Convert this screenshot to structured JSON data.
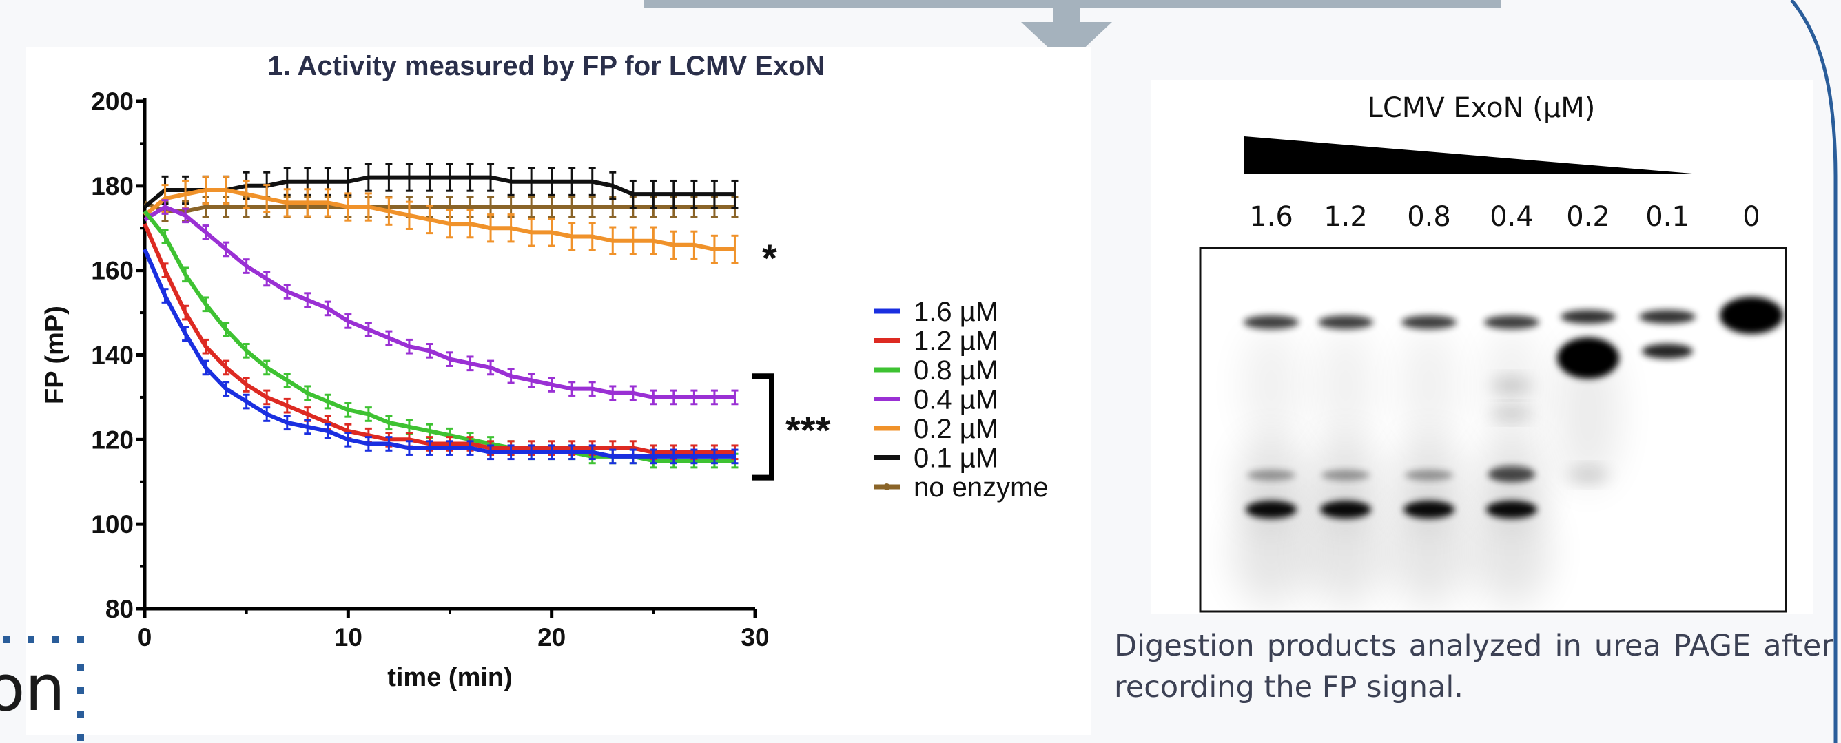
{
  "chart_data": {
    "type": "line",
    "title": "1. Activity measured by FP for LCMV ExoN",
    "xlabel": "time (min)",
    "ylabel": "FP (mP)",
    "xlim": [
      0,
      30
    ],
    "ylim": [
      80,
      200
    ],
    "xticks": [
      0,
      10,
      20,
      30
    ],
    "yticks": [
      80,
      100,
      120,
      140,
      160,
      180,
      200
    ],
    "grid": false,
    "legend_position": "right",
    "x": [
      0,
      1,
      2,
      3,
      4,
      5,
      6,
      7,
      8,
      9,
      10,
      11,
      12,
      13,
      14,
      15,
      16,
      17,
      18,
      19,
      20,
      21,
      22,
      23,
      24,
      25,
      26,
      27,
      28,
      29
    ],
    "series": [
      {
        "name": "1.6 µM",
        "color": "#1a2fe0",
        "values": [
          165,
          154,
          145,
          137,
          132,
          129,
          126,
          124,
          123,
          122,
          120,
          119,
          119,
          118,
          118,
          118,
          118,
          117,
          117,
          117,
          117,
          117,
          117,
          116,
          116,
          116,
          116,
          116,
          116,
          116
        ]
      },
      {
        "name": "1.2 µM",
        "color": "#dd2a22",
        "values": [
          171,
          160,
          150,
          142,
          137,
          133,
          130,
          128,
          126,
          124,
          122,
          121,
          120,
          120,
          119,
          119,
          119,
          118,
          118,
          118,
          118,
          118,
          118,
          118,
          118,
          117,
          117,
          117,
          117,
          117
        ]
      },
      {
        "name": "0.8 µM",
        "color": "#3ec232",
        "values": [
          174,
          168,
          159,
          152,
          146,
          141,
          137,
          134,
          131,
          129,
          127,
          126,
          124,
          123,
          122,
          121,
          120,
          119,
          118,
          117,
          117,
          117,
          116,
          116,
          116,
          115,
          115,
          115,
          115,
          115
        ]
      },
      {
        "name": "0.4 µM",
        "color": "#9a30d4",
        "values": [
          172,
          175,
          173,
          169,
          165,
          161,
          158,
          155,
          153,
          151,
          148,
          146,
          144,
          142,
          141,
          139,
          138,
          137,
          135,
          134,
          133,
          132,
          132,
          131,
          131,
          130,
          130,
          130,
          130,
          130
        ]
      },
      {
        "name": "0.2 µM",
        "color": "#f0922a",
        "values": [
          173,
          177,
          178,
          179,
          179,
          178,
          177,
          176,
          176,
          176,
          175,
          175,
          174,
          173,
          172,
          171,
          171,
          170,
          170,
          169,
          169,
          168,
          168,
          167,
          167,
          167,
          166,
          166,
          165,
          165
        ]
      },
      {
        "name": "0.1 µM",
        "color": "#111111",
        "values": [
          175,
          179,
          179,
          179,
          179,
          180,
          180,
          181,
          181,
          181,
          181,
          182,
          182,
          182,
          182,
          182,
          182,
          182,
          181,
          181,
          181,
          181,
          181,
          180,
          178,
          178,
          178,
          178,
          178,
          178
        ]
      },
      {
        "name": "no enzyme",
        "color": "#8a6428",
        "values": [
          176,
          174,
          174,
          175,
          175,
          175,
          175,
          175,
          175,
          175,
          175,
          175,
          175,
          175,
          175,
          175,
          175,
          175,
          175,
          175,
          175,
          175,
          175,
          175,
          175,
          175,
          175,
          175,
          175,
          175
        ]
      }
    ],
    "annotations": [
      "*",
      "***"
    ]
  },
  "gel": {
    "title": "LCMV ExoN (µM)",
    "lanes": [
      "1.6",
      "1.2",
      "0.8",
      "0.4",
      "0.2",
      "0.1",
      "0"
    ]
  },
  "caption": "Digestion products analyzed in urea PAGE after recording the FP signal.",
  "slide_fragment": {
    "text": "on"
  },
  "colors": {
    "arrow": "#a5b2bd",
    "curve": "#2a5d9a",
    "dots": "#2a5d9a"
  }
}
